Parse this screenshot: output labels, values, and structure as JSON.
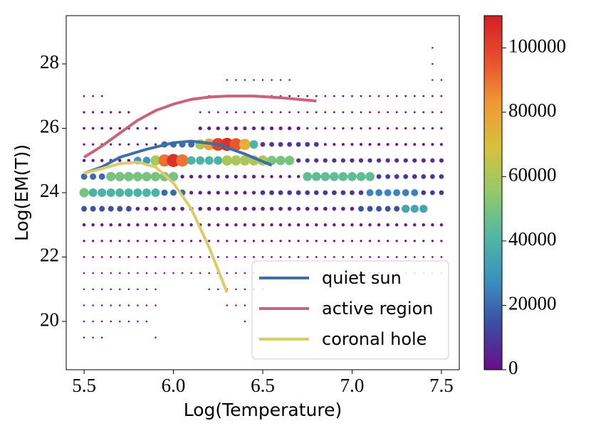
{
  "chart_data": {
    "type": "scatter",
    "xlabel": "Log(Temperature)",
    "ylabel": "Log(EM(T))",
    "xlim": [
      5.4,
      7.6
    ],
    "ylim": [
      18.5,
      29.5
    ],
    "xticks": [
      5.5,
      {
        "value": 6,
        "label": "6.0"
      },
      6.5,
      {
        "value": 7,
        "label": "7.0"
      },
      7.5
    ],
    "yticks": [
      20,
      22,
      24,
      26,
      28
    ],
    "clim": [
      0,
      110000
    ],
    "cticks": [
      0,
      20000,
      40000,
      60000,
      80000,
      100000
    ],
    "colormap": [
      "#6a0c86",
      "#3d4ba0",
      "#3a8fc0",
      "#4fb7a4",
      "#93c96a",
      "#d5c23e",
      "#f09a35",
      "#e8502c",
      "#d21f26"
    ],
    "legend": "lower right",
    "x": [
      5.5,
      5.55,
      5.6,
      5.65,
      5.7,
      5.75,
      5.8,
      5.85,
      5.9,
      5.95,
      6,
      6.05,
      6.1,
      6.15,
      6.2,
      6.25,
      6.3,
      6.35,
      6.4,
      6.45,
      6.5,
      6.55,
      6.6,
      6.65,
      6.7,
      6.75,
      6.8,
      6.85,
      6.9,
      6.95,
      7,
      7.05,
      7.1,
      7.15,
      7.2,
      7.25,
      7.3,
      7.35,
      7.4,
      7.45,
      7.5
    ],
    "y": [
      19.5,
      20,
      20.5,
      21,
      21.5,
      22,
      22.5,
      23,
      23.5,
      24,
      24.5,
      25,
      25.5,
      26,
      26.5,
      27,
      27.5,
      28,
      28.5
    ],
    "counts": [
      [
        300,
        300,
        300,
        0,
        0,
        0,
        0,
        0,
        300,
        0,
        0,
        0,
        0,
        0,
        0,
        0,
        0,
        0,
        0,
        0,
        0,
        0,
        0,
        0,
        0,
        0,
        0,
        0,
        0,
        0,
        0,
        0,
        0,
        0,
        0,
        0,
        0,
        0,
        0,
        0,
        0
      ],
      [
        300,
        300,
        300,
        300,
        300,
        300,
        300,
        300,
        0,
        0,
        0,
        0,
        0,
        0,
        0,
        0,
        0,
        0,
        300,
        0,
        0,
        0,
        0,
        0,
        0,
        0,
        0,
        0,
        0,
        0,
        0,
        0,
        0,
        0,
        0,
        0,
        0,
        0,
        0,
        0,
        0
      ],
      [
        300,
        300,
        300,
        300,
        300,
        300,
        300,
        300,
        300,
        0,
        0,
        0,
        0,
        0,
        0,
        0,
        300,
        300,
        300,
        0,
        0,
        0,
        0,
        0,
        0,
        0,
        0,
        0,
        0,
        0,
        0,
        0,
        0,
        0,
        0,
        0,
        0,
        0,
        0,
        0,
        0
      ],
      [
        300,
        300,
        300,
        300,
        300,
        300,
        300,
        300,
        300,
        0,
        0,
        0,
        0,
        0,
        300,
        300,
        300,
        300,
        300,
        300,
        300,
        0,
        0,
        0,
        0,
        0,
        0,
        0,
        0,
        0,
        0,
        0,
        0,
        0,
        0,
        0,
        0,
        0,
        0,
        0,
        0
      ],
      [
        300,
        300,
        300,
        300,
        300,
        300,
        300,
        300,
        300,
        300,
        300,
        300,
        300,
        300,
        300,
        300,
        300,
        300,
        300,
        300,
        300,
        0,
        0,
        0,
        0,
        0,
        0,
        0,
        0,
        0,
        300,
        300,
        300,
        300,
        300,
        300,
        300,
        300,
        300,
        300,
        300
      ],
      [
        500,
        500,
        500,
        500,
        500,
        500,
        500,
        500,
        500,
        500,
        500,
        500,
        500,
        500,
        500,
        500,
        500,
        500,
        500,
        500,
        500,
        500,
        500,
        500,
        500,
        500,
        500,
        500,
        500,
        500,
        500,
        500,
        500,
        500,
        500,
        500,
        500,
        500,
        500,
        500,
        500
      ],
      [
        1000,
        1000,
        1000,
        1000,
        1000,
        1000,
        1000,
        1000,
        1000,
        1000,
        1000,
        1000,
        1000,
        1000,
        1000,
        1000,
        1000,
        1000,
        1000,
        1000,
        1000,
        1000,
        1000,
        1000,
        1000,
        1000,
        1000,
        1000,
        1000,
        1000,
        1000,
        1000,
        1000,
        1000,
        1000,
        1000,
        1000,
        1000,
        1000,
        1000,
        1000
      ],
      [
        3000,
        3000,
        3000,
        3000,
        3000,
        3000,
        3000,
        3000,
        3000,
        3000,
        3000,
        3000,
        3000,
        3000,
        3000,
        3000,
        3000,
        3000,
        3000,
        3000,
        3000,
        3000,
        3000,
        3000,
        3000,
        3000,
        3000,
        3000,
        3000,
        3000,
        3000,
        3000,
        3000,
        3000,
        3000,
        3000,
        3000,
        3000,
        3000,
        3000,
        3000
      ],
      [
        15000,
        15000,
        15000,
        15000,
        15000,
        15000,
        6000,
        6000,
        6000,
        6000,
        6000,
        6000,
        6000,
        6000,
        6000,
        6000,
        6000,
        6000,
        6000,
        6000,
        6000,
        6000,
        6000,
        6000,
        6000,
        6000,
        6000,
        6000,
        6000,
        6000,
        6000,
        15000,
        15000,
        15000,
        15000,
        15000,
        35000,
        35000,
        35000,
        0,
        0
      ],
      [
        50000,
        40000,
        40000,
        40000,
        40000,
        40000,
        40000,
        40000,
        40000,
        20000,
        20000,
        20000,
        5000,
        5000,
        5000,
        5000,
        5000,
        5000,
        5000,
        5000,
        10000,
        10000,
        10000,
        10000,
        10000,
        10000,
        10000,
        10000,
        10000,
        10000,
        10000,
        10000,
        25000,
        25000,
        25000,
        25000,
        25000,
        25000,
        10000,
        10000,
        10000
      ],
      [
        20000,
        20000,
        20000,
        50000,
        50000,
        50000,
        50000,
        50000,
        50000,
        50000,
        50000,
        5000,
        5000,
        5000,
        5000,
        5000,
        5000,
        5000,
        5000,
        5000,
        3000,
        3000,
        3000,
        3000,
        3000,
        45000,
        45000,
        45000,
        45000,
        45000,
        45000,
        45000,
        45000,
        10000,
        10000,
        10000,
        10000,
        10000,
        10000,
        10000,
        10000
      ],
      [
        3000,
        3000,
        3000,
        3000,
        3000,
        3000,
        30000,
        30000,
        60000,
        90000,
        105000,
        90000,
        40000,
        40000,
        40000,
        40000,
        60000,
        60000,
        60000,
        60000,
        60000,
        50000,
        50000,
        50000,
        8000,
        8000,
        8000,
        8000,
        8000,
        8000,
        8000,
        8000,
        8000,
        8000,
        8000,
        8000,
        8000,
        8000,
        8000,
        8000,
        8000
      ],
      [
        1000,
        1000,
        1000,
        1000,
        1000,
        1000,
        1000,
        1000,
        1000,
        20000,
        20000,
        20000,
        20000,
        60000,
        80000,
        100000,
        105000,
        95000,
        75000,
        40000,
        10000,
        10000,
        10000,
        10000,
        10000,
        10000,
        10000,
        2000,
        2000,
        2000,
        2000,
        2000,
        2000,
        2000,
        2000,
        2000,
        2000,
        2000,
        2000,
        2000,
        2000
      ],
      [
        1500,
        1500,
        1500,
        1500,
        1500,
        1500,
        1500,
        1500,
        1500,
        0,
        0,
        0,
        0,
        5000,
        5000,
        5000,
        5000,
        5000,
        5000,
        5000,
        5000,
        5000,
        5000,
        5000,
        5000,
        1000,
        1000,
        1000,
        1000,
        1000,
        1000,
        1000,
        1000,
        1000,
        1000,
        1000,
        1000,
        1000,
        1000,
        1000,
        1000
      ],
      [
        1000,
        1000,
        1000,
        1000,
        1000,
        1000,
        0,
        0,
        0,
        0,
        0,
        0,
        0,
        500,
        500,
        500,
        500,
        500,
        500,
        500,
        500,
        500,
        500,
        500,
        500,
        500,
        500,
        500,
        500,
        500,
        500,
        500,
        500,
        500,
        500,
        500,
        500,
        500,
        500,
        500,
        500
      ],
      [
        500,
        500,
        500,
        0,
        0,
        0,
        0,
        0,
        0,
        0,
        0,
        0,
        0,
        0,
        500,
        500,
        500,
        500,
        500,
        500,
        500,
        500,
        500,
        500,
        500,
        500,
        500,
        500,
        500,
        500,
        500,
        500,
        500,
        500,
        500,
        500,
        500,
        500,
        500,
        500,
        500
      ],
      [
        0,
        0,
        0,
        0,
        0,
        0,
        0,
        0,
        0,
        0,
        0,
        0,
        0,
        0,
        0,
        0,
        300,
        300,
        300,
        300,
        300,
        300,
        300,
        300,
        0,
        0,
        0,
        0,
        0,
        0,
        0,
        0,
        0,
        0,
        0,
        0,
        0,
        0,
        0,
        300,
        300
      ],
      [
        0,
        0,
        0,
        0,
        0,
        0,
        0,
        0,
        0,
        0,
        0,
        0,
        0,
        0,
        0,
        0,
        0,
        0,
        0,
        0,
        0,
        0,
        0,
        0,
        0,
        0,
        0,
        0,
        0,
        0,
        0,
        0,
        0,
        0,
        0,
        0,
        0,
        0,
        0,
        300,
        0
      ],
      [
        0,
        0,
        0,
        0,
        0,
        0,
        0,
        0,
        0,
        0,
        0,
        0,
        0,
        0,
        0,
        0,
        0,
        0,
        0,
        0,
        0,
        0,
        0,
        0,
        0,
        0,
        0,
        0,
        0,
        0,
        0,
        0,
        0,
        0,
        0,
        0,
        0,
        0,
        0,
        300,
        0
      ]
    ],
    "series": [
      {
        "name": "quiet sun",
        "color": "#3f6ea7",
        "x": [
          5.5,
          5.6,
          5.7,
          5.85,
          6.0,
          6.1,
          6.25,
          6.4,
          6.55
        ],
        "values": [
          24.6,
          24.8,
          25.1,
          25.35,
          25.55,
          25.6,
          25.5,
          25.2,
          24.85
        ]
      },
      {
        "name": "active region",
        "color": "#c9627a",
        "x": [
          5.5,
          5.6,
          5.7,
          5.8,
          5.9,
          6.0,
          6.1,
          6.2,
          6.3,
          6.45,
          6.6,
          6.8
        ],
        "values": [
          25.1,
          25.45,
          25.85,
          26.25,
          26.55,
          26.75,
          26.9,
          26.97,
          27.0,
          27.0,
          26.95,
          26.85
        ]
      },
      {
        "name": "coronal hole",
        "color": "#dccb6e",
        "x": [
          5.5,
          5.6,
          5.7,
          5.8,
          5.9,
          6.0,
          6.1,
          6.2,
          6.3
        ],
        "values": [
          24.6,
          24.75,
          24.9,
          24.95,
          24.8,
          24.3,
          23.5,
          22.3,
          20.9
        ]
      }
    ]
  }
}
